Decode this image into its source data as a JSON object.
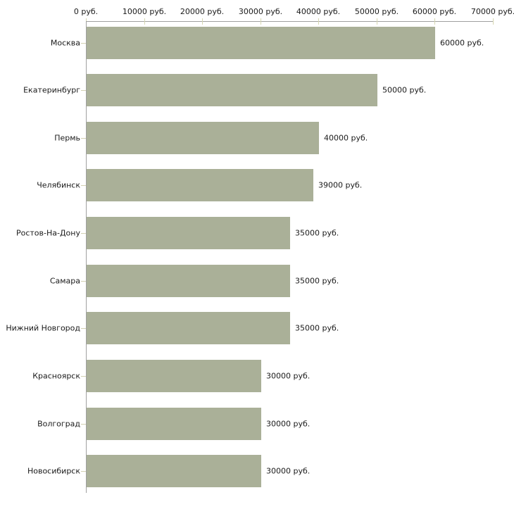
{
  "chart_data": {
    "type": "bar",
    "orientation": "horizontal",
    "title": "",
    "xlabel": "",
    "ylabel": "",
    "legend": "none",
    "grid": "off",
    "categories": [
      "Москва",
      "Екатеринбург",
      "Пермь",
      "Челябинск",
      "Ростов-На-Дону",
      "Самара",
      "Нижний Новгород",
      "Красноярск",
      "Волгоград",
      "Новосибирск"
    ],
    "values": [
      60000,
      50000,
      40000,
      39000,
      35000,
      35000,
      35000,
      30000,
      30000,
      30000
    ],
    "value_labels": [
      "60000 руб.",
      "50000 руб.",
      "40000 руб.",
      "39000 руб.",
      "35000 руб.",
      "35000 руб.",
      "35000 руб.",
      "30000 руб.",
      "30000 руб.",
      "30000 руб."
    ],
    "x_axis": {
      "position": "top",
      "min": 0,
      "max": 70000,
      "ticks": [
        0,
        10000,
        20000,
        30000,
        40000,
        50000,
        60000,
        70000
      ],
      "tick_labels": [
        "0 руб.",
        "10000 руб.",
        "20000 руб.",
        "30000 руб.",
        "40000 руб.",
        "50000 руб.",
        "60000 руб.",
        "70000 руб."
      ]
    },
    "colors": {
      "bar": "#aab098",
      "axis_line": "#a0a0a0",
      "x_tick_mark": "#d6d7b2",
      "y_tick_mark": "#d2d0b2",
      "text": "#1a1a1a",
      "background": "#ffffff"
    }
  }
}
